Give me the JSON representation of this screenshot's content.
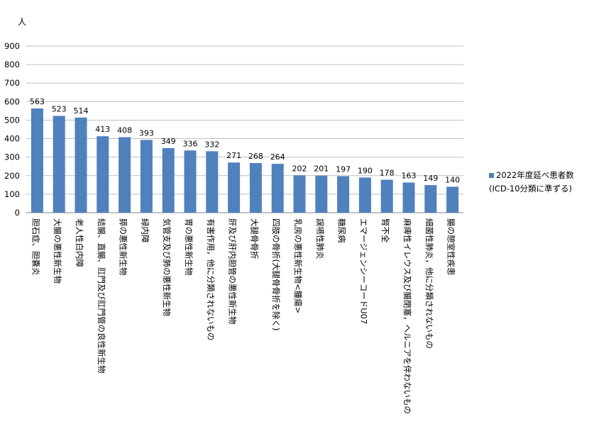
{
  "chart_data": {
    "type": "bar",
    "unit_label": "人",
    "categories": [
      "胆石症、胆嚢炎",
      "大腸の悪性新生物",
      "老人性白内障",
      "結腸、直腸、肛門及び肛門管の良性新生物",
      "膵の悪性新生物",
      "緑内障",
      "気管支及び肺の悪性新生物",
      "胃の悪性新生物",
      "有害作用，他に分類されないもの",
      "肝及び肝内胆管の悪性新生物",
      "大腿骨骨折",
      "四肢の骨折(大腿骨骨折を除く)",
      "乳房の悪性新生物<腫瘍>",
      "誤嚥性肺炎",
      "糖尿病",
      "エマージェンシーコードU07",
      "腎不全",
      "麻痺性イレウス及び腸閉塞，ヘルニアを伴わないもの",
      "細菌性肺炎，他に分類されないもの",
      "腸の憩室性疾患"
    ],
    "series": [
      {
        "name": "2022年度延べ患者数",
        "values": [
          563,
          523,
          514,
          413,
          408,
          393,
          349,
          336,
          332,
          271,
          268,
          264,
          202,
          201,
          197,
          190,
          178,
          163,
          149,
          140
        ]
      }
    ],
    "ylim": [
      0,
      900
    ],
    "yticks": [
      0,
      100,
      200,
      300,
      400,
      500,
      600,
      700,
      800,
      900
    ],
    "grid": true,
    "legend_position": "right",
    "bar_color": "#4F81BD",
    "grid_color": "#BFBFBF"
  },
  "legend": {
    "series_label": "2022年度延べ患者数",
    "note": "(ICD-10分類に準ずる)"
  }
}
